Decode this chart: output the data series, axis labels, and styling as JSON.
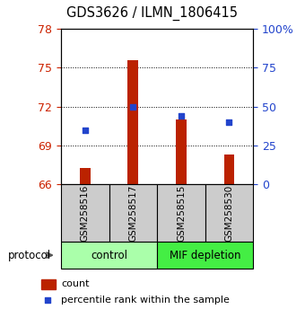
{
  "title": "GDS3626 / ILMN_1806415",
  "samples": [
    "GSM258516",
    "GSM258517",
    "GSM258515",
    "GSM258530"
  ],
  "bar_values": [
    67.3,
    75.6,
    71.0,
    68.3
  ],
  "bar_base": 66,
  "percentile_values": [
    35,
    50,
    44,
    40
  ],
  "left_ylim": [
    66,
    78
  ],
  "left_yticks": [
    66,
    69,
    72,
    75,
    78
  ],
  "right_ylim": [
    0,
    100
  ],
  "right_yticks": [
    0,
    25,
    50,
    75,
    100
  ],
  "right_yticklabels": [
    "0",
    "25",
    "50",
    "75",
    "100%"
  ],
  "bar_color": "#bb2200",
  "dot_color": "#2244cc",
  "groups": [
    {
      "label": "control",
      "span": [
        0,
        2
      ],
      "color": "#aaffaa"
    },
    {
      "label": "MIF depletion",
      "span": [
        2,
        4
      ],
      "color": "#44ee44"
    }
  ],
  "protocol_label": "protocol",
  "legend_bar_label": "count",
  "legend_dot_label": "percentile rank within the sample",
  "grid_yticks": [
    69,
    72,
    75
  ],
  "left_tick_color": "#cc2200",
  "right_tick_color": "#2244cc"
}
